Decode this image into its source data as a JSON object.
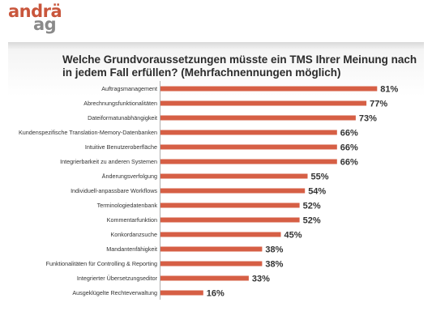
{
  "logo": {
    "line1": "andrä",
    "line2": "ag"
  },
  "colors": {
    "bar": "#d65f45",
    "logo_accent": "#c9563c",
    "logo_gray": "#8a8a8a"
  },
  "chart_data": {
    "type": "bar",
    "orientation": "horizontal",
    "title": "Welche Grundvoraussetzungen müsste ein TMS Ihrer Meinung nach in jedem Fall erfüllen? (Mehrfachnennungen möglich)",
    "categories": [
      "Auftragsmanagement",
      "Abrechnungsfunktionalitäten",
      "Dateiformatunabhängigkeit",
      "Kundenspezifische Translation-Memory-Datenbanken",
      "Intuitive Benutzeroberfläche",
      "Integrierbarkeit zu anderen Systemen",
      "Änderungsverfolgung",
      "Individuell-anpassbare Workflows",
      "Terminologiedatenbank",
      "Kommentarfunktion",
      "Konkordanzsuche",
      "Mandantenfähigkeit",
      "Funktionalitäten für Controlling & Reporting",
      "Integrierter Übersetzungseditor",
      "Ausgeklügelte Rechteverwaltung"
    ],
    "values": [
      81,
      77,
      73,
      66,
      66,
      66,
      55,
      54,
      52,
      52,
      45,
      38,
      38,
      33,
      16
    ],
    "value_labels": [
      "81%",
      "77%",
      "73%",
      "66%",
      "66%",
      "66%",
      "55%",
      "54%",
      "52%",
      "52%",
      "45%",
      "38%",
      "38%",
      "33%",
      "16%"
    ],
    "unit": "%",
    "xlim": [
      0,
      100
    ],
    "grid": false,
    "legend": "none"
  }
}
